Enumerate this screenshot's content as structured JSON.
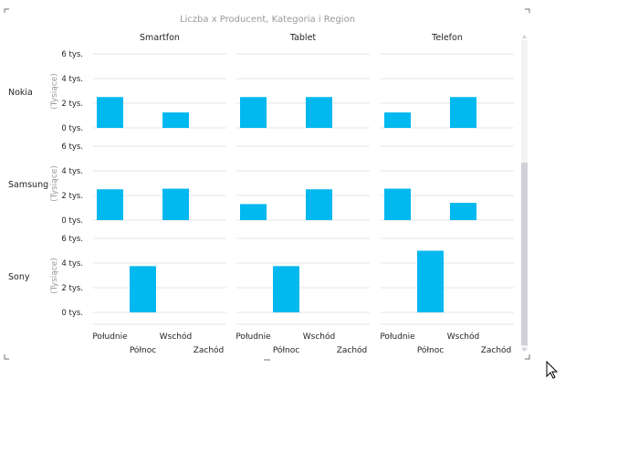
{
  "chart_data": {
    "type": "bar",
    "title": "Liczba x Producent, Kategoria i Region",
    "columns": [
      "Smartfon",
      "Tablet",
      "Telefon"
    ],
    "rows": [
      "Nokia",
      "Samsung",
      "Sony"
    ],
    "categories": [
      "Południe",
      "Północ",
      "Wschód",
      "Zachód"
    ],
    "ylabel": "(Tysiące)",
    "yticks": [
      "0 tys.",
      "2 tys.",
      "4 tys.",
      "6 tys."
    ],
    "ylim": [
      0,
      6000
    ],
    "bar_color": "#01B8EF",
    "panels": [
      {
        "row": "Nokia",
        "column": "Smartfon",
        "values": [
          2500,
          0,
          1250,
          0
        ]
      },
      {
        "row": "Nokia",
        "column": "Tablet",
        "values": [
          2500,
          0,
          2500,
          0
        ]
      },
      {
        "row": "Nokia",
        "column": "Telefon",
        "values": [
          1250,
          0,
          2500,
          0
        ]
      },
      {
        "row": "Samsung",
        "column": "Smartfon",
        "values": [
          2500,
          0,
          2550,
          0
        ]
      },
      {
        "row": "Samsung",
        "column": "Tablet",
        "values": [
          1300,
          0,
          2500,
          0
        ]
      },
      {
        "row": "Samsung",
        "column": "Telefon",
        "values": [
          2550,
          0,
          1400,
          0
        ]
      },
      {
        "row": "Sony",
        "column": "Smartfon",
        "values": [
          0,
          3750,
          0,
          0
        ]
      },
      {
        "row": "Sony",
        "column": "Tablet",
        "values": [
          0,
          3750,
          0,
          0
        ]
      },
      {
        "row": "Sony",
        "column": "Telefon",
        "values": [
          0,
          5000,
          0,
          0
        ]
      }
    ],
    "grid": true,
    "legend": "none"
  },
  "colors": {
    "gridline": "#e6e6e6",
    "axis_text": "#252423",
    "muted_text": "#999999",
    "scrollbar": "#cfd0d8"
  }
}
